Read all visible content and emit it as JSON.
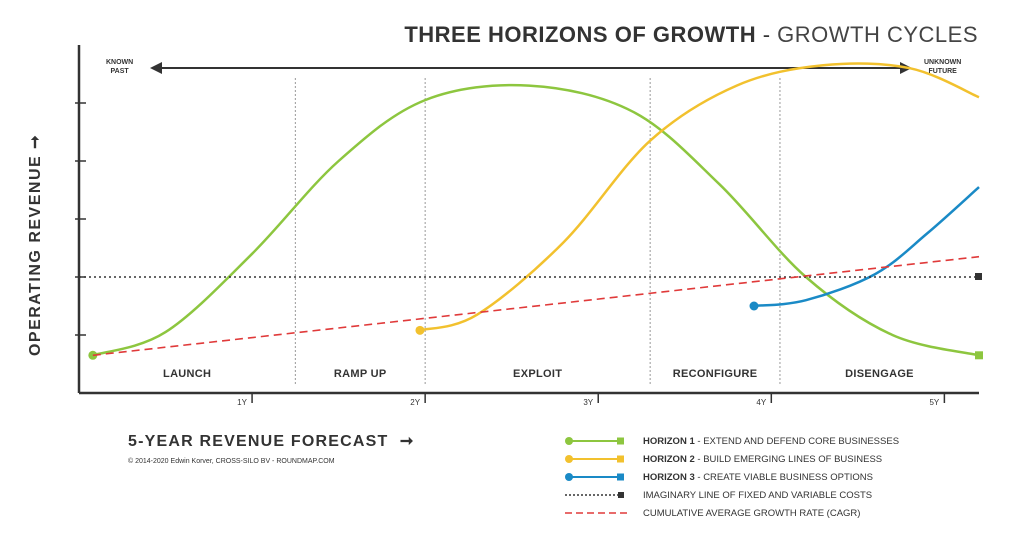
{
  "title": {
    "bold": "THREE HORIZONS OF GROWTH",
    "sep": " - ",
    "rest": "GROWTH CYCLES"
  },
  "timeline": {
    "left": [
      "KNOWN",
      "PAST"
    ],
    "right": [
      "UNKNOWN",
      "FUTURE"
    ]
  },
  "chart_data": {
    "type": "line",
    "xlabel": "5-YEAR REVENUE FORECAST",
    "ylabel": "OPERATING REVENUE",
    "x_ticks": [
      "1Y",
      "2Y",
      "3Y",
      "4Y",
      "5Y"
    ],
    "xlim": [
      0,
      5.2
    ],
    "ylim": [
      0,
      6
    ],
    "phases": [
      "LAUNCH",
      "RAMP UP",
      "EXPLOIT",
      "RECONFIGURE",
      "DISENGAGE"
    ],
    "phase_boundaries": [
      1.25,
      2.0,
      3.3,
      4.05
    ],
    "series": [
      {
        "name": "HORIZON 1",
        "desc": "EXTEND AND DEFEND CORE BUSINESSES",
        "color": "#8dc63f",
        "style": "solid",
        "points": [
          [
            0.08,
            0.65
          ],
          [
            0.5,
            1.05
          ],
          [
            1.0,
            2.4
          ],
          [
            1.5,
            4.0
          ],
          [
            2.0,
            5.05
          ],
          [
            2.6,
            5.3
          ],
          [
            3.2,
            4.85
          ],
          [
            3.7,
            3.6
          ],
          [
            4.2,
            2.0
          ],
          [
            4.7,
            1.0
          ],
          [
            5.2,
            0.65
          ]
        ]
      },
      {
        "name": "HORIZON 2",
        "desc": "BUILD EMERGING LINES OF BUSINESS",
        "color": "#f2c12e",
        "style": "solid",
        "points": [
          [
            1.97,
            1.08
          ],
          [
            2.3,
            1.35
          ],
          [
            2.8,
            2.6
          ],
          [
            3.3,
            4.35
          ],
          [
            3.8,
            5.3
          ],
          [
            4.3,
            5.65
          ],
          [
            4.8,
            5.6
          ],
          [
            5.2,
            5.1
          ]
        ]
      },
      {
        "name": "HORIZON 3",
        "desc": "CREATE VIABLE BUSINESS OPTIONS",
        "color": "#1a8ac6",
        "style": "solid",
        "points": [
          [
            3.9,
            1.5
          ],
          [
            4.2,
            1.6
          ],
          [
            4.6,
            2.05
          ],
          [
            4.9,
            2.75
          ],
          [
            5.2,
            3.55
          ]
        ]
      },
      {
        "name": "",
        "desc": "IMAGINARY LINE OF FIXED AND VARIABLE COSTS",
        "color": "#333333",
        "style": "dotted",
        "points": [
          [
            0.0,
            2.0
          ],
          [
            5.2,
            2.0
          ]
        ]
      },
      {
        "name": "",
        "desc": "CUMULATIVE AVERAGE GROWTH RATE (CAGR)",
        "color": "#e03a3a",
        "style": "dashed",
        "points": [
          [
            0.08,
            0.65
          ],
          [
            5.2,
            2.35
          ]
        ]
      }
    ]
  },
  "copyright": "© 2014-2020 Edwin Korver, CROSS-SILO BV - ROUNDMAP.COM"
}
